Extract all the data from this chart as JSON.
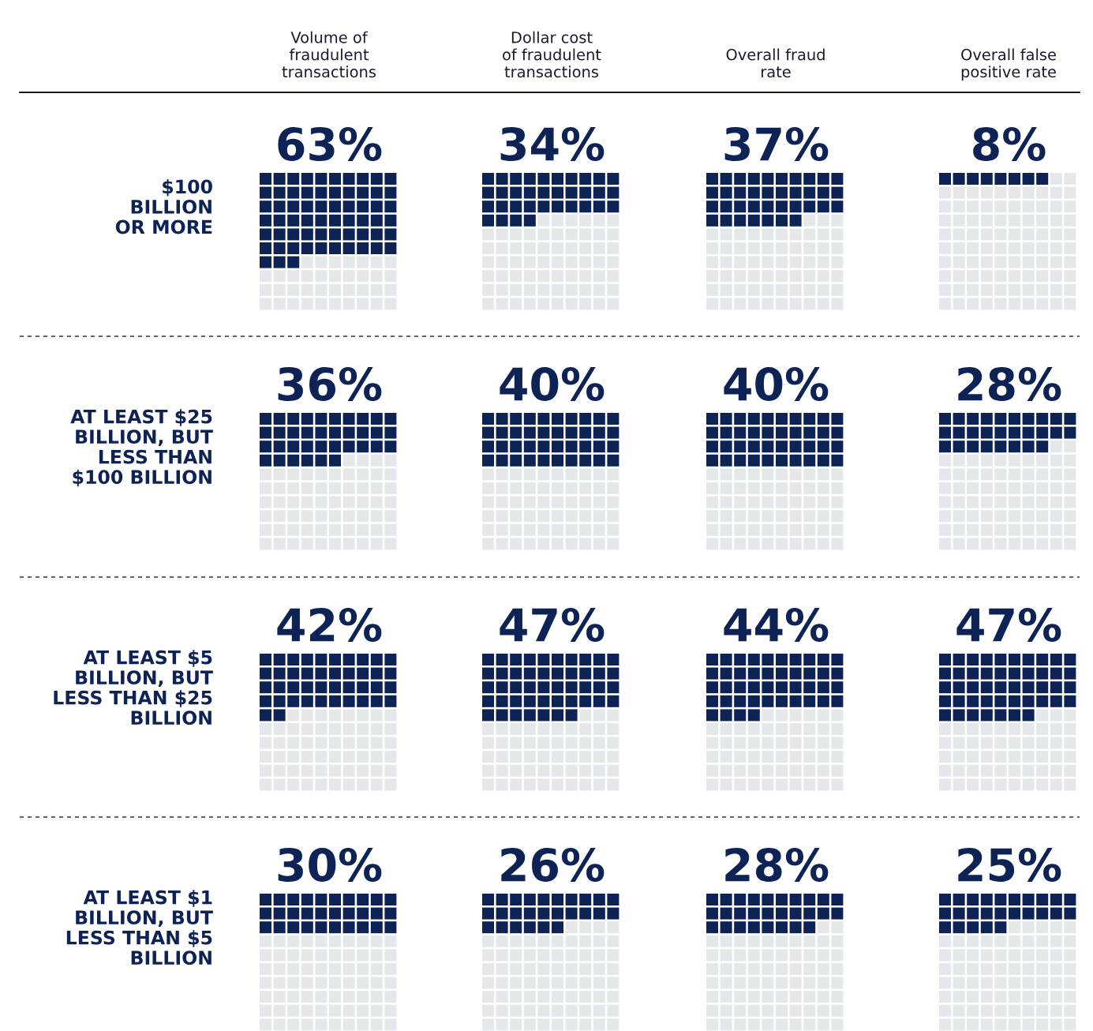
{
  "chart_data": {
    "type": "other",
    "categories": [
      "Volume of\nfraudulent\ntransactions",
      "Dollar cost\nof fraudulent\ntransactions",
      "Overall fraud\nrate",
      "Overall false\npositive rate"
    ],
    "series": [
      {
        "name": "$100\nBILLION\nOR MORE",
        "color": "#0d2356",
        "values": [
          63,
          34,
          37,
          8
        ],
        "value_labels": [
          "63%",
          "34%",
          "37%",
          "8%"
        ]
      },
      {
        "name": "AT LEAST $25\nBILLION, BUT\nLESS THAN\n$100 BILLION",
        "color": "#0d2356",
        "values": [
          36,
          40,
          40,
          28
        ],
        "value_labels": [
          "36%",
          "40%",
          "40%",
          "28%"
        ]
      },
      {
        "name": "AT LEAST $5\nBILLION, BUT\nLESS THAN $25\nBILLION",
        "color": "#0d2356",
        "values": [
          42,
          47,
          44,
          47
        ],
        "value_labels": [
          "42%",
          "47%",
          "44%",
          "47%"
        ]
      },
      {
        "name": "AT LEAST $1\nBILLION, BUT\nLESS THAN $5\nBILLION",
        "color": "#0d2356",
        "values": [
          30,
          26,
          28,
          25
        ],
        "value_labels": [
          "30%",
          "26%",
          "28%",
          "25%"
        ]
      }
    ]
  }
}
